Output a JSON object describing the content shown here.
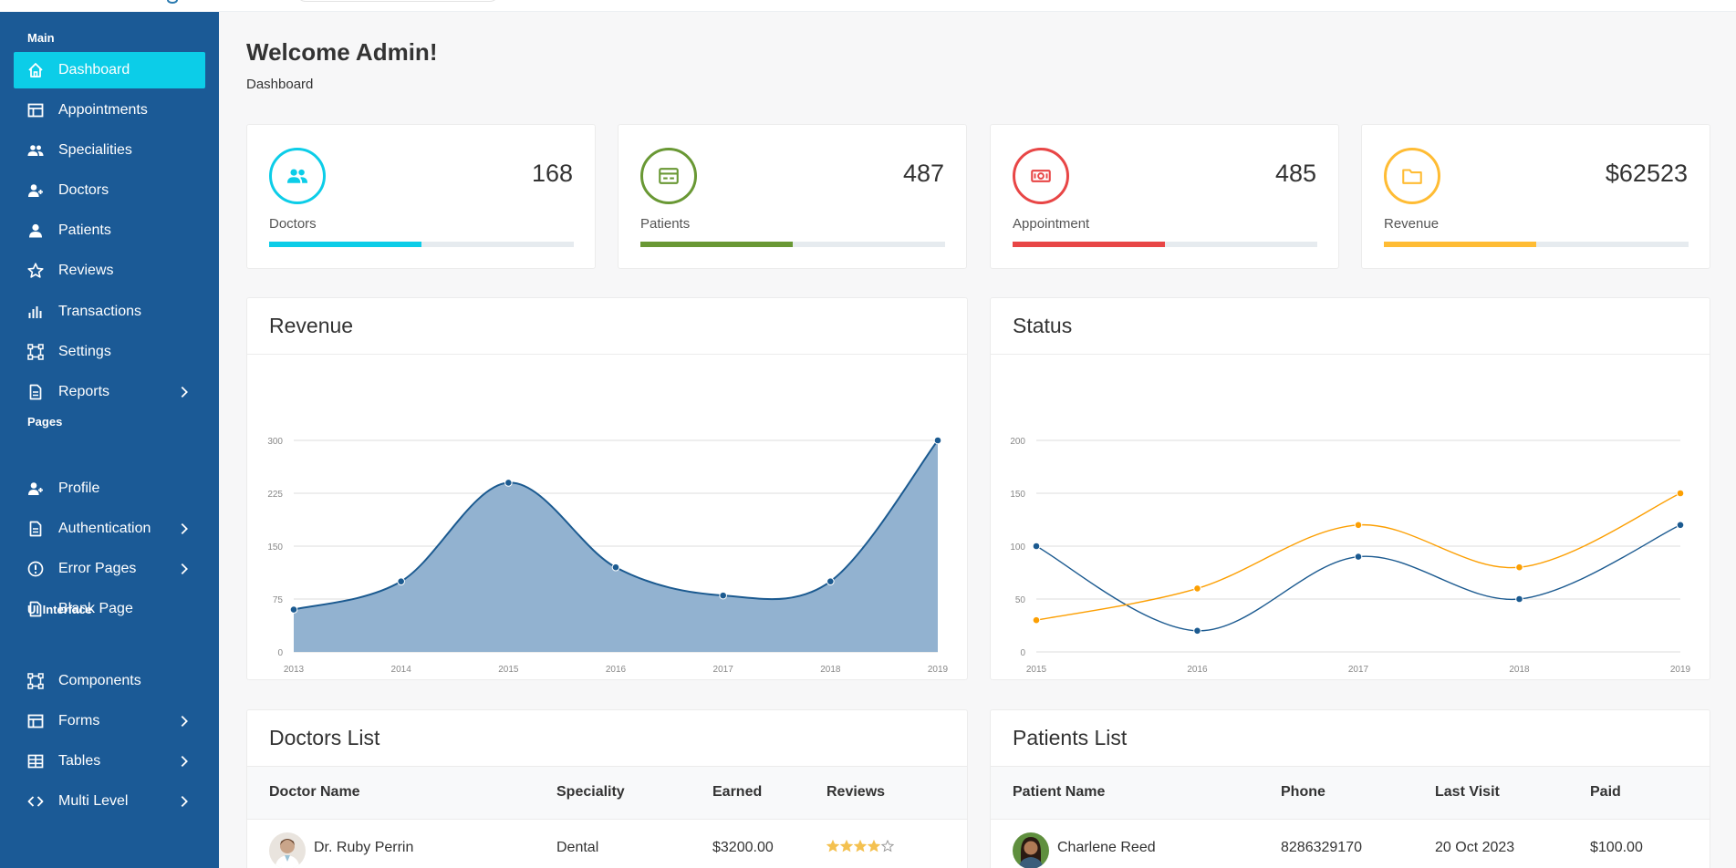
{
  "sidebar": {
    "sections": [
      {
        "title": "Main"
      },
      {
        "title": "Pages"
      },
      {
        "title": "UI Interface"
      }
    ],
    "items": [
      {
        "label": "Dashboard",
        "icon": "home-icon",
        "active": true
      },
      {
        "label": "Appointments",
        "icon": "layout-icon"
      },
      {
        "label": "Specialities",
        "icon": "people-icon"
      },
      {
        "label": "Doctors",
        "icon": "user-plus-icon"
      },
      {
        "label": "Patients",
        "icon": "user-icon"
      },
      {
        "label": "Reviews",
        "icon": "star-icon"
      },
      {
        "label": "Transactions",
        "icon": "bar-chart-icon"
      },
      {
        "label": "Settings",
        "icon": "vector-square-icon"
      },
      {
        "label": "Reports",
        "icon": "document-icon",
        "has_children": true
      },
      {
        "label": "Profile",
        "icon": "user-plus-icon"
      },
      {
        "label": "Authentication",
        "icon": "document-icon",
        "has_children": true
      },
      {
        "label": "Error Pages",
        "icon": "alert-circle-icon",
        "has_children": true
      },
      {
        "label": "Blank Page",
        "icon": "file-icon"
      },
      {
        "label": "Components",
        "icon": "vector-square-icon"
      },
      {
        "label": "Forms",
        "icon": "layout-icon",
        "has_children": true
      },
      {
        "label": "Tables",
        "icon": "table-icon",
        "has_children": true
      },
      {
        "label": "Multi Level",
        "icon": "code-icon",
        "has_children": true
      }
    ]
  },
  "page": {
    "title": "Welcome Admin!",
    "breadcrumb": "Dashboard"
  },
  "stats": [
    {
      "label": "Doctors",
      "value": "168",
      "color": "#0ccde8",
      "icon": "people-icon",
      "progress": 0.5
    },
    {
      "label": "Patients",
      "value": "487",
      "color": "#699834",
      "icon": "credit-card-icon",
      "progress": 0.5
    },
    {
      "label": "Appointment",
      "value": "485",
      "color": "#e84646",
      "icon": "money-icon",
      "progress": 0.5
    },
    {
      "label": "Revenue",
      "value": "$62523",
      "color": "#ffbc34",
      "icon": "folder-icon",
      "progress": 0.5
    }
  ],
  "revenue_panel": {
    "title": "Revenue"
  },
  "status_panel": {
    "title": "Status"
  },
  "chart_data": [
    {
      "type": "area",
      "title": "Revenue",
      "x": [
        "2013",
        "2014",
        "2015",
        "2016",
        "2017",
        "2018",
        "2019"
      ],
      "series": [
        {
          "values": [
            60,
            100,
            240,
            120,
            80,
            100,
            300
          ]
        }
      ],
      "yticks": [
        "0",
        "75",
        "150",
        "225",
        "300"
      ],
      "ylim": [
        0,
        300
      ],
      "grid": true,
      "colors": {
        "line": "#1b5a90",
        "fill": "#92b2d0"
      }
    },
    {
      "type": "line",
      "title": "Status",
      "x": [
        "2015",
        "2016",
        "2017",
        "2018",
        "2019"
      ],
      "series": [
        {
          "values": [
            100,
            20,
            90,
            50,
            120
          ],
          "color": "#1b5a90"
        },
        {
          "values": [
            30,
            60,
            120,
            80,
            150
          ],
          "color": "#fc9f02"
        }
      ],
      "yticks": [
        "0",
        "50",
        "100",
        "150",
        "200"
      ],
      "ylim": [
        0,
        200
      ],
      "grid": true
    }
  ],
  "doctors_list": {
    "title": "Doctors List",
    "columns": [
      "Doctor Name",
      "Speciality",
      "Earned",
      "Reviews"
    ],
    "rows": [
      {
        "name": "Dr. Ruby Perrin",
        "speciality": "Dental",
        "earned": "$3200.00",
        "rating": 4
      }
    ]
  },
  "patients_list": {
    "title": "Patients List",
    "columns": [
      "Patient Name",
      "Phone",
      "Last Visit",
      "Paid"
    ],
    "rows": [
      {
        "name": "Charlene Reed",
        "phone": "8286329170",
        "last_visit": "20 Oct 2023",
        "paid": "$100.00"
      }
    ]
  }
}
